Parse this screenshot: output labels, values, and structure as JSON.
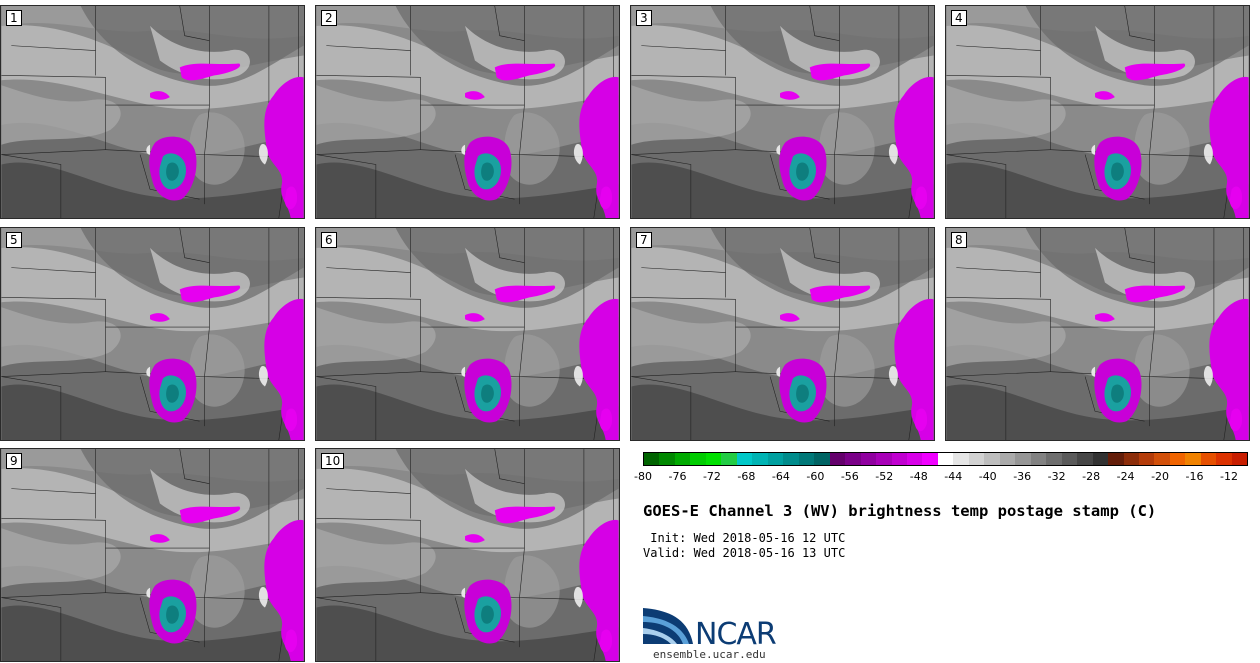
{
  "panels": [
    {
      "label": "1"
    },
    {
      "label": "2"
    },
    {
      "label": "3"
    },
    {
      "label": "4"
    },
    {
      "label": "5"
    },
    {
      "label": "6"
    },
    {
      "label": "7"
    },
    {
      "label": "8"
    },
    {
      "label": "9"
    },
    {
      "label": "10"
    }
  ],
  "legend": {
    "ticks": [
      "-80",
      "-76",
      "-72",
      "-68",
      "-64",
      "-60",
      "-56",
      "-52",
      "-48",
      "-44",
      "-40",
      "-36",
      "-32",
      "-28",
      "-24",
      "-20",
      "-16",
      "-12"
    ],
    "colors": [
      "#006400",
      "#008800",
      "#00aa00",
      "#00cc00",
      "#00e000",
      "#22cc44",
      "#00c8c8",
      "#00b4b4",
      "#00a0a0",
      "#008c8c",
      "#007878",
      "#006464",
      "#64006c",
      "#7a0088",
      "#9000a0",
      "#a800b8",
      "#c000d0",
      "#d800e8",
      "#f000ff",
      "#ffffff",
      "#e6e6e6",
      "#d2d2d2",
      "#bebebe",
      "#aaaaaa",
      "#969696",
      "#828282",
      "#6e6e6e",
      "#5a5a5a",
      "#464646",
      "#323232",
      "#641e0a",
      "#8c2d0a",
      "#b43c0a",
      "#d2500a",
      "#f06400",
      "#f08200",
      "#e65000",
      "#dc3200",
      "#c81e00"
    ]
  },
  "title": "GOES-E Channel 3 (WV) brightness temp postage stamp (C)",
  "init": " Init: Wed 2018-05-16 12 UTC",
  "valid": "Valid: Wed 2018-05-16 13 UTC",
  "logo": {
    "name": "NCAR",
    "url": "ensemble.ucar.edu"
  }
}
